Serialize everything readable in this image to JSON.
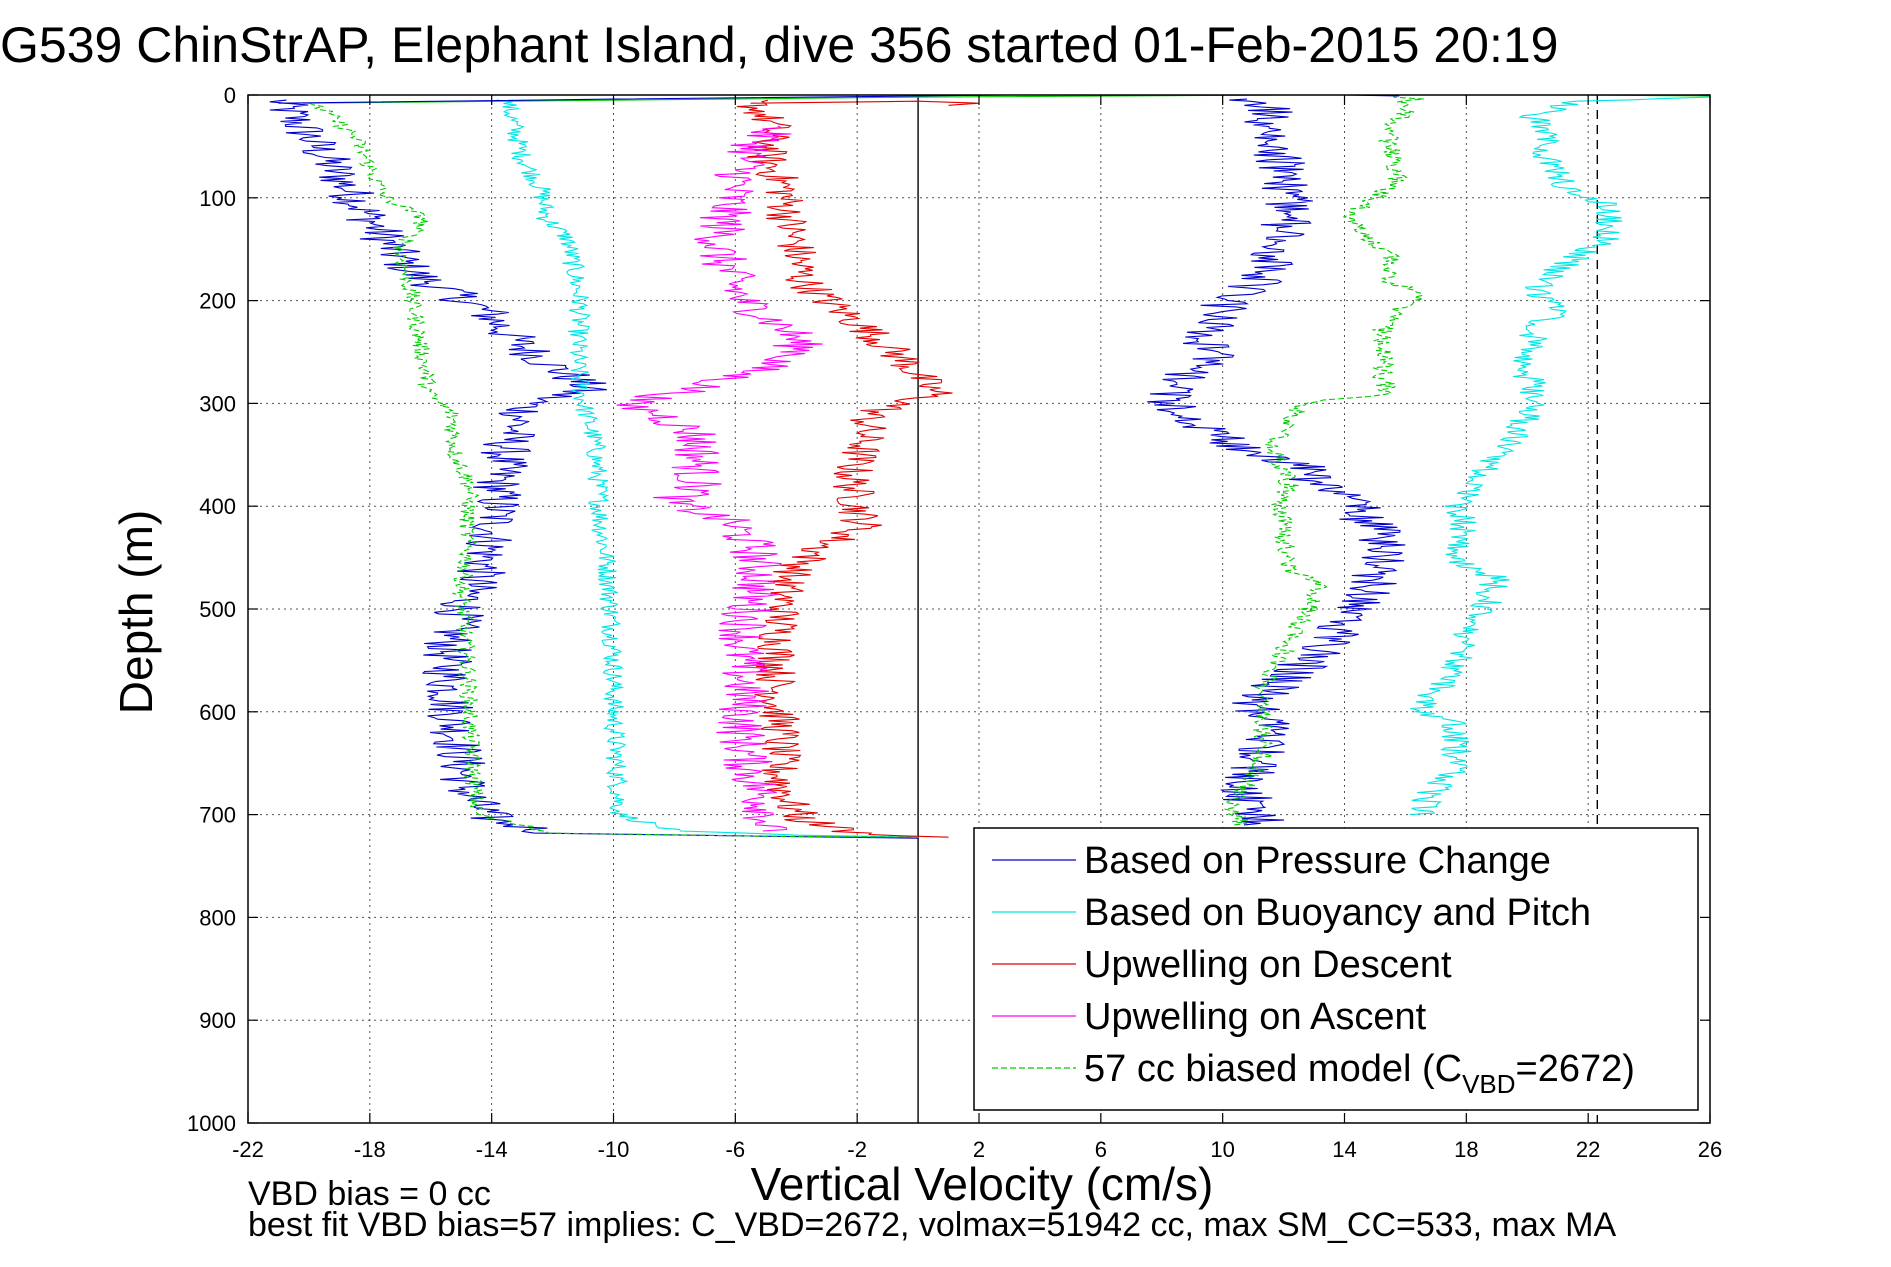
{
  "chart_data": {
    "type": "line",
    "title": "G539 ChinStrAP, Elephant Island, dive 356 started 01-Feb-2015 20:19",
    "xlabel": "Vertical Velocity (cm/s)",
    "ylabel": "Depth (m)",
    "xlim": [
      -22,
      26
    ],
    "ylim": [
      0,
      1000
    ],
    "y_reversed": true,
    "grid": true,
    "grid_style": "dotted",
    "legend_position": "lower-right",
    "x_ticks": [
      -22,
      -18,
      -14,
      -10,
      -6,
      -2,
      2,
      6,
      10,
      14,
      18,
      22,
      26
    ],
    "y_ticks": [
      0,
      100,
      200,
      300,
      400,
      500,
      600,
      700,
      800,
      900,
      1000
    ],
    "reference_lines": [
      {
        "x": 0,
        "style": "solid",
        "color": "#000000"
      },
      {
        "x": 22.3,
        "style": "dashed",
        "color": "#000000"
      }
    ],
    "legend": [
      {
        "label": "Based on Pressure Change",
        "color": "#0000cc",
        "style": "solid"
      },
      {
        "label": "Based on Buoyancy and Pitch",
        "color": "#00e5e5",
        "style": "solid"
      },
      {
        "label": "Upwelling on Descent",
        "color": "#e00000",
        "style": "solid"
      },
      {
        "label": "Upwelling on Ascent",
        "color": "#ff00ff",
        "style": "solid"
      },
      {
        "label_parts": [
          "57 cc biased model (C",
          "VBD",
          "=2672)"
        ],
        "color": "#00cc00",
        "style": "dashed"
      }
    ],
    "series": [
      {
        "name": "Based on Pressure Change",
        "color": "#0000cc",
        "dash": false,
        "noise": 0.85,
        "x": [
          -21,
          -20,
          -19,
          -18.5,
          -18,
          -17.5,
          -17,
          -16.5,
          -15.5,
          -14.2,
          -13.2,
          -12.2,
          -10.8,
          -12.8,
          -13.5,
          -13.8,
          -13.8,
          -14,
          -14.3,
          -15,
          -15.5,
          -15.4,
          -15.2,
          -15,
          -14.8,
          -14,
          -12,
          -8,
          -2,
          0
        ],
        "y": [
          5,
          40,
          80,
          100,
          120,
          140,
          160,
          175,
          190,
          210,
          240,
          260,
          285,
          300,
          340,
          380,
          400,
          430,
          460,
          500,
          540,
          580,
          620,
          650,
          680,
          705,
          718,
          720,
          722,
          723
        ]
      },
      {
        "name": "Based on Buoyancy and Pitch",
        "color": "#00e5e5",
        "dash": false,
        "noise": 0.35,
        "x": [
          -13.5,
          -13,
          -12.4,
          -12.2,
          -11.5,
          -11.1,
          -11.2,
          -11,
          -10.6,
          -10.5,
          -10.4,
          -10.2,
          -10.1,
          -10,
          -10,
          -9.9,
          -9.8,
          -8,
          -4,
          0
        ],
        "y": [
          5,
          60,
          90,
          120,
          140,
          200,
          260,
          300,
          340,
          380,
          420,
          460,
          500,
          540,
          600,
          650,
          700,
          716,
          720,
          722
        ]
      },
      {
        "name": "Upwelling on Descent",
        "color": "#e00000",
        "dash": false,
        "noise": 0.7,
        "x": [
          -5.5,
          -4.8,
          -5,
          -4.4,
          -4.3,
          -4,
          -3.8,
          -3,
          -1.6,
          -0.4,
          0.2,
          0.6,
          -1.6,
          -1.8,
          -2.2,
          -2,
          -1.8,
          -3.2,
          -4.3,
          -4.5,
          -4.6,
          -4.7,
          -4.5,
          -4.6,
          -4.2,
          -3.8,
          -2,
          1
        ],
        "y": [
          5,
          30,
          60,
          90,
          120,
          150,
          180,
          200,
          230,
          260,
          280,
          290,
          310,
          340,
          370,
          400,
          420,
          440,
          470,
          500,
          540,
          580,
          620,
          660,
          690,
          705,
          718,
          722
        ]
      },
      {
        "name": "Upwelling on Ascent",
        "color": "#ff00ff",
        "dash": false,
        "noise": 0.85,
        "x": [
          -4.8,
          -5.6,
          -6.2,
          -6.6,
          -5.8,
          -4.2,
          -3.8,
          -5.6,
          -7.8,
          -9.8,
          -8.5,
          -7.3,
          -7.2,
          -7.3,
          -7.2,
          -8.2,
          -6.2,
          -5.4,
          -5.2,
          -5.6,
          -5.8,
          -5.7,
          -5.8,
          -5.6,
          -5.2,
          -4.9,
          -5,
          -5.1
        ],
        "y": [
          30,
          60,
          100,
          150,
          200,
          230,
          250,
          270,
          290,
          300,
          310,
          330,
          350,
          370,
          385,
          395,
          415,
          440,
          470,
          500,
          540,
          580,
          620,
          650,
          680,
          700,
          710,
          716
        ]
      },
      {
        "name": "57 cc biased model (CVBD=2672)",
        "color": "#00cc00",
        "dash": true,
        "noise": 0.3,
        "x": [
          -19.8,
          -18.5,
          -17.5,
          -16.2,
          -17,
          -16.6,
          -16.3,
          -16.1,
          -16.1,
          -15.3,
          -15.2,
          -14.7,
          -14.8,
          -14.8,
          -15,
          -14.9,
          -14.8,
          -14.7,
          -14.5,
          -12,
          -5,
          0
        ],
        "y": [
          8,
          40,
          100,
          120,
          150,
          200,
          250,
          280,
          290,
          310,
          350,
          380,
          410,
          450,
          480,
          520,
          560,
          620,
          700,
          718,
          721,
          722
        ]
      },
      {
        "name": "Based on Pressure Change (ascent)",
        "color": "#0000cc",
        "dash": false,
        "noise": 0.85,
        "x": [
          11.5,
          10.8,
          10.8,
          11,
          11.4,
          11.4,
          11,
          12,
          13.2,
          13.8,
          14.2,
          14.8,
          15.2,
          15.2,
          14.3,
          13.2,
          12.5,
          10.2,
          9.3,
          8.2,
          8.4,
          9,
          9.8,
          9.4,
          9.6,
          10.2,
          11.2,
          11.6,
          11.8,
          12.2,
          12.2,
          12,
          11.8,
          11.6,
          11.5,
          11.5,
          11,
          10.7,
          10.6,
          10.8
        ],
        "y": [
          710,
          690,
          670,
          650,
          630,
          610,
          590,
          570,
          540,
          520,
          500,
          480,
          450,
          430,
          400,
          380,
          360,
          340,
          320,
          300,
          280,
          270,
          255,
          240,
          220,
          200,
          180,
          160,
          140,
          120,
          100,
          80,
          60,
          40,
          20,
          10,
          8,
          6,
          5,
          4
        ]
      },
      {
        "name": "Based on Buoyancy and Pitch (ascent)",
        "color": "#00e5e5",
        "dash": false,
        "noise": 0.5,
        "x": [
          16.5,
          16.8,
          17.5,
          17.7,
          17.5,
          16.3,
          17.6,
          17.8,
          18,
          18.6,
          19,
          17.6,
          18,
          17.7,
          18.3,
          19.5,
          19.8,
          20.3,
          20.2,
          19.6,
          20.2,
          20.3,
          21.3,
          20.2,
          21,
          22.6,
          22.8,
          21.2,
          20.6,
          20.6,
          20.2,
          21.6,
          26
        ],
        "y": [
          700,
          680,
          660,
          640,
          610,
          600,
          560,
          540,
          520,
          500,
          470,
          450,
          430,
          400,
          370,
          340,
          320,
          300,
          280,
          260,
          240,
          220,
          210,
          190,
          170,
          140,
          110,
          90,
          60,
          40,
          20,
          6,
          2
        ]
      },
      {
        "name": "57 cc biased model (ascent)",
        "color": "#00cc00",
        "dash": true,
        "noise": 0.35,
        "x": [
          10.6,
          10.3,
          10.8,
          11.4,
          11.3,
          11.2,
          11.6,
          12.2,
          12.8,
          13.2,
          12.2,
          12,
          11.9,
          12.2,
          11.6,
          12.6,
          15.4,
          15.2,
          15.4,
          15.2,
          15.6,
          16.6,
          16.4,
          15.2,
          15.6,
          15.3,
          14,
          15,
          15.8,
          15.6,
          15.4,
          15.6,
          16.2,
          15.9,
          16.3,
          15.6
        ],
        "y": [
          710,
          690,
          670,
          640,
          610,
          590,
          560,
          530,
          500,
          480,
          460,
          430,
          400,
          380,
          340,
          300,
          290,
          270,
          250,
          230,
          210,
          200,
          190,
          180,
          165,
          150,
          120,
          100,
          80,
          60,
          40,
          25,
          15,
          8,
          4,
          2
        ]
      }
    ],
    "spikes": [
      {
        "color": "#00cc00",
        "points": [
          [
            -20.2,
            8
          ],
          [
            0,
            2
          ],
          [
            12,
            0
          ],
          [
            22,
            0
          ],
          [
            26,
            1
          ]
        ]
      },
      {
        "color": "#0000cc",
        "points": [
          [
            -21,
            8
          ],
          [
            -10,
            4
          ],
          [
            0,
            1
          ],
          [
            3,
            0
          ],
          [
            14,
            0
          ],
          [
            15.8,
            1
          ]
        ]
      },
      {
        "color": "#e00000",
        "points": [
          [
            -5.5,
            8
          ],
          [
            0,
            6
          ],
          [
            2,
            8
          ],
          [
            1,
            10
          ]
        ]
      }
    ],
    "annotations": {
      "vbd_bias": "VBD bias = 0 cc",
      "best_fit": "best fit VBD bias=57 implies: C_VBD=2672, volmax=51942 cc, max SM_CC=533, max MA"
    }
  }
}
